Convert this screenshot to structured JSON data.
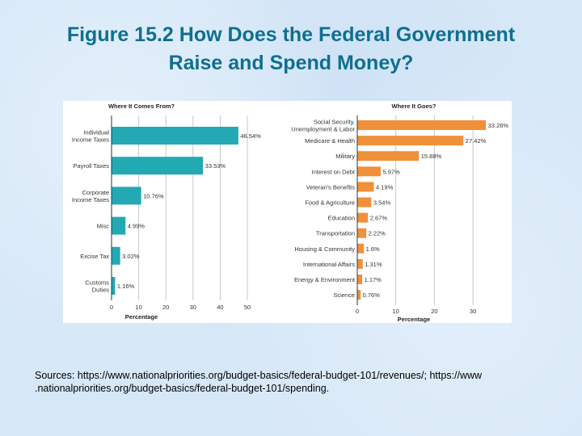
{
  "title_line1": "Figure 15.2 How Does the Federal Government",
  "title_line2": "Raise and Spend Money?",
  "sources": "Sources: https://www.nationalpriorities.org/budget-basics/federal-budget-101/revenues/; https://www .nationalpriorities.org/budget-basics/federal-budget-101/spending.",
  "chart_data": [
    {
      "type": "bar",
      "orientation": "horizontal",
      "title": "Where It Comes From?",
      "xlabel": "Percentage",
      "xlim": [
        0,
        50
      ],
      "xticks": [
        "0",
        "10",
        "20",
        "30",
        "40",
        "50"
      ],
      "grid": true,
      "color": "#23a9b3",
      "categories": [
        [
          "Individual",
          "Income Taxes"
        ],
        [
          "Payroll Taxes"
        ],
        [
          "Corporate",
          "Income Taxes"
        ],
        [
          "Misc"
        ],
        [
          "Excise Tax"
        ],
        [
          "Customs",
          "Duties"
        ]
      ],
      "values": [
        46.54,
        33.53,
        10.76,
        4.99,
        3.02,
        1.16
      ],
      "labels": [
        "46.54%",
        "33.53%",
        "10.76%",
        "4.99%",
        "3.02%",
        "1.16%"
      ]
    },
    {
      "type": "bar",
      "orientation": "horizontal",
      "title": "Where It Goes?",
      "xlabel": "Percentage",
      "xlim": [
        0,
        33.26
      ],
      "xticks": [
        "0",
        "10",
        "20",
        "30"
      ],
      "grid": true,
      "color": "#f0903a",
      "categories": [
        [
          "Social Security,",
          "Unemployment & Labor"
        ],
        [
          "Medicare & Health"
        ],
        [
          "Military"
        ],
        [
          "Interest on Debt"
        ],
        [
          "Veteran's Benefits"
        ],
        [
          "Food & Agriculture"
        ],
        [
          "Education"
        ],
        [
          "Transportation"
        ],
        [
          "Housing & Community"
        ],
        [
          "International Affairs"
        ],
        [
          "Energy & Environment"
        ],
        [
          "Science"
        ]
      ],
      "values": [
        33.26,
        27.42,
        15.88,
        5.97,
        4.19,
        3.54,
        2.67,
        2.22,
        1.6,
        1.31,
        1.17,
        0.76
      ],
      "labels": [
        "33.26%",
        "27.42%",
        "15.88%",
        "5.97%",
        "4.19%",
        "3.54%",
        "2.67%",
        "2.22%",
        "1.6%",
        "1.31%",
        "1.17%",
        "0.76%"
      ]
    }
  ]
}
